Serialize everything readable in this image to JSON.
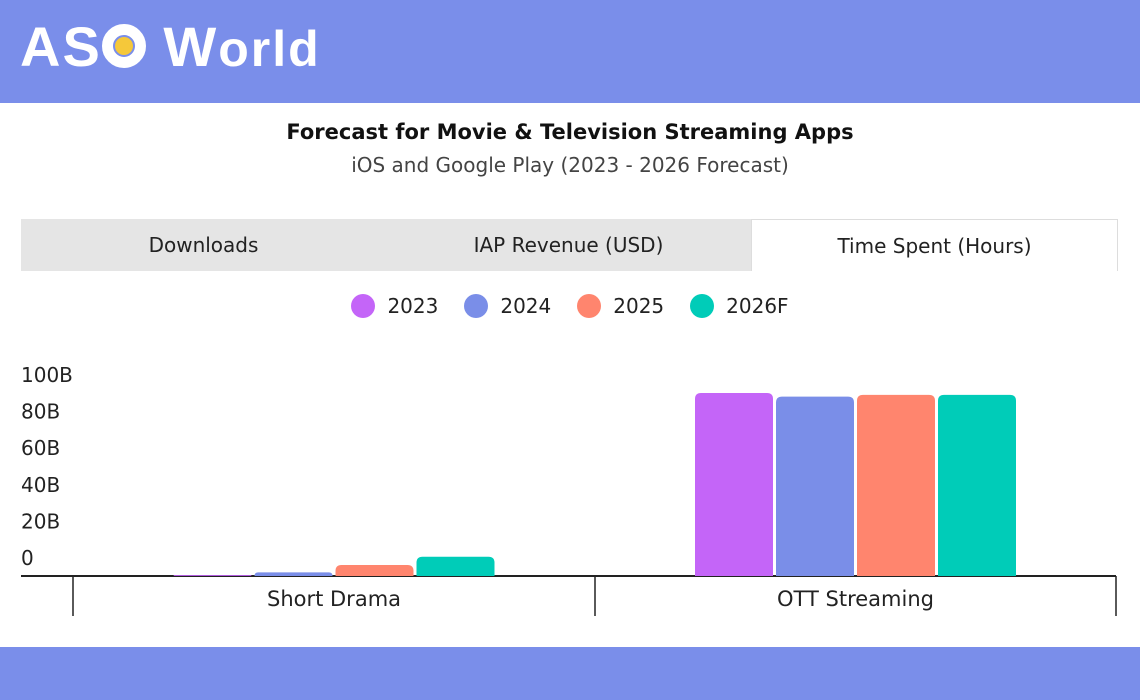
{
  "brand": {
    "logo_text": "ASO World"
  },
  "header": {
    "title": "Forecast for Movie & Television Streaming Apps",
    "subtitle": "iOS and Google Play (2023 - 2026 Forecast)"
  },
  "tabs": [
    {
      "label": "Downloads",
      "active": false
    },
    {
      "label": "IAP Revenue (USD)",
      "active": false
    },
    {
      "label": "Time Spent (Hours)",
      "active": true
    }
  ],
  "colors": {
    "header_bg": "#7a8eea"
  },
  "chart_data": {
    "type": "bar",
    "categories": [
      "Short Drama",
      "OTT Streaming"
    ],
    "series": [
      {
        "name": "2023",
        "color": "#c465f8",
        "values": [
          0.5,
          100
        ]
      },
      {
        "name": "2024",
        "color": "#7a8ee8",
        "values": [
          2,
          98
        ]
      },
      {
        "name": "2025",
        "color": "#ff856e",
        "values": [
          6,
          99
        ]
      },
      {
        "name": "2026F",
        "color": "#00ccb8",
        "values": [
          10.5,
          99
        ]
      }
    ],
    "yticks": [
      "0",
      "20B",
      "40B",
      "60B",
      "80B",
      "100B"
    ],
    "ylim": [
      0,
      100
    ],
    "legend": "top",
    "grid": false
  }
}
